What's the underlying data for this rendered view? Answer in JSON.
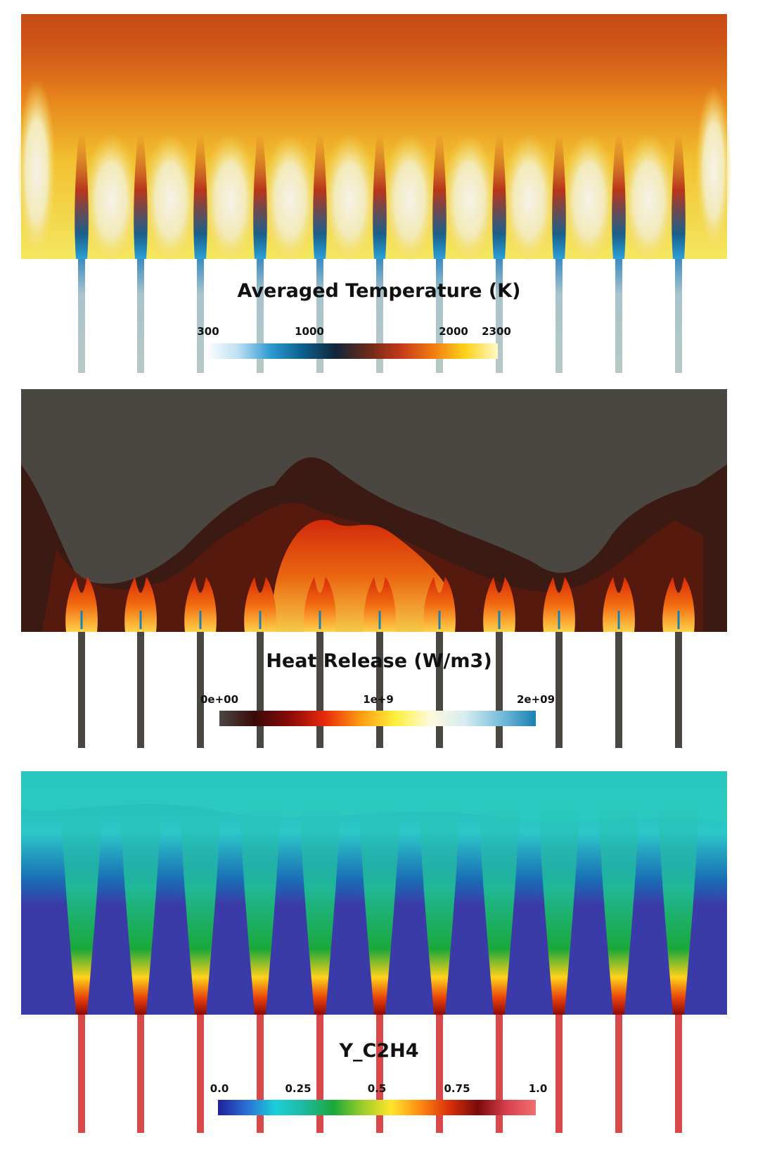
{
  "panels": {
    "temperature": {
      "title": "Averaged Temperature (K)",
      "ticks": [
        "300",
        "1000",
        "2000",
        "2300"
      ],
      "colors": [
        "#ffffff",
        "#bfe0f3",
        "#2e9ad3",
        "#0b5f8c",
        "#10263a",
        "#6a2a1a",
        "#c4381a",
        "#f07a12",
        "#ffd21a",
        "#fff9c8"
      ]
    },
    "heat_release": {
      "title": "Heat Release (W/m3)",
      "ticks": [
        "0e+00",
        "1e+9",
        "2e+09"
      ],
      "colors": [
        "#4a4642",
        "#3a0a08",
        "#8a0a0a",
        "#e82a0a",
        "#ff9a10",
        "#fff03a",
        "#fff9dc",
        "#d6ecf2",
        "#78bed9",
        "#1a7fb4"
      ]
    },
    "species": {
      "title": "Y_C2H4",
      "ticks": [
        "0.0",
        "0.25",
        "0.5",
        "0.75",
        "1.0"
      ],
      "colors": [
        "#20209a",
        "#2b6fd6",
        "#1ad0d8",
        "#1fb8a0",
        "#1aa83a",
        "#9ccd2a",
        "#ffe52a",
        "#ff8a12",
        "#d8300a",
        "#7a0a0a",
        "#d84050",
        "#f07070"
      ]
    }
  }
}
